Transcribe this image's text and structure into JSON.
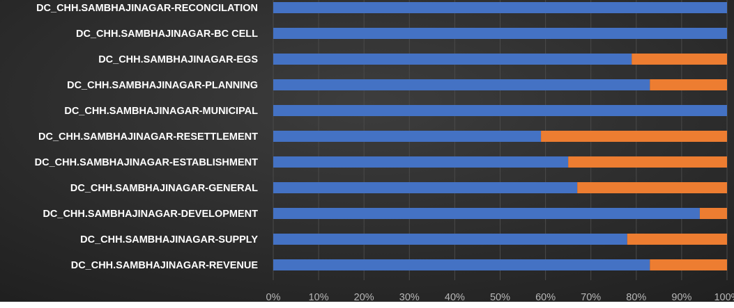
{
  "chart_data": {
    "type": "bar",
    "orientation": "horizontal",
    "stacked": "percent",
    "categories": [
      "DC_CHH.SAMBHAJINAGAR-RECONCILATION",
      "DC_CHH.SAMBHAJINAGAR-BC CELL",
      "DC_CHH.SAMBHAJINAGAR-EGS",
      "DC_CHH.SAMBHAJINAGAR-PLANNING",
      "DC_CHH.SAMBHAJINAGAR-MUNICIPAL",
      "DC_CHH.SAMBHAJINAGAR-RESETTLEMENT",
      "DC_CHH.SAMBHAJINAGAR-ESTABLISHMENT",
      "DC_CHH.SAMBHAJINAGAR-GENERAL",
      "DC_CHH.SAMBHAJINAGAR-DEVELOPMENT",
      "DC_CHH.SAMBHAJINAGAR-SUPPLY",
      "DC_CHH.SAMBHAJINAGAR-REVENUE"
    ],
    "series": [
      {
        "color": "#4472c4",
        "values": [
          100,
          100,
          79,
          83,
          100,
          59,
          65,
          67,
          94,
          78,
          83
        ]
      },
      {
        "color": "#ed7d31",
        "values": [
          0,
          0,
          21,
          17,
          0,
          41,
          35,
          33,
          6,
          22,
          17
        ]
      }
    ],
    "xticks": [
      "0%",
      "10%",
      "20%",
      "30%",
      "40%",
      "50%",
      "60%",
      "70%",
      "80%",
      "90%",
      "100%"
    ],
    "xlim": [
      0,
      100
    ],
    "grid": true,
    "background_color": "#2b2b2b"
  }
}
